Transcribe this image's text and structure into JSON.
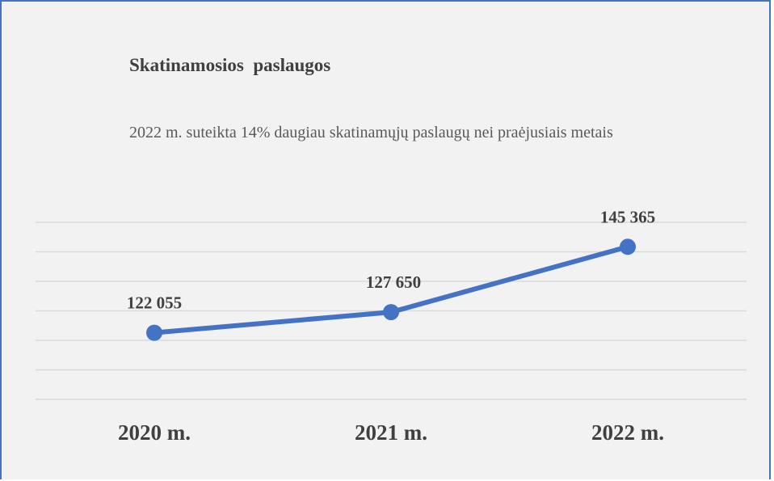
{
  "chart_data": {
    "type": "line",
    "title": "Skatinamosios  paslaugos",
    "subtitle": "2022 m. suteikta 14% daugiau skatinamųjų paslaugų nei praėjusiais metais",
    "categories": [
      "2020 m.",
      "2021 m.",
      "2022 m."
    ],
    "series": [
      {
        "name": "Skatinamosios paslaugos",
        "color": "#4472c4",
        "values": [
          122055,
          127650,
          145365
        ],
        "value_labels": [
          "122 055",
          "127 650",
          "145 365"
        ]
      }
    ],
    "ylim": [
      104000,
      152000
    ],
    "yticks": [
      104000,
      112000,
      120000,
      128000,
      136000,
      144000,
      152000
    ],
    "grid": true
  }
}
